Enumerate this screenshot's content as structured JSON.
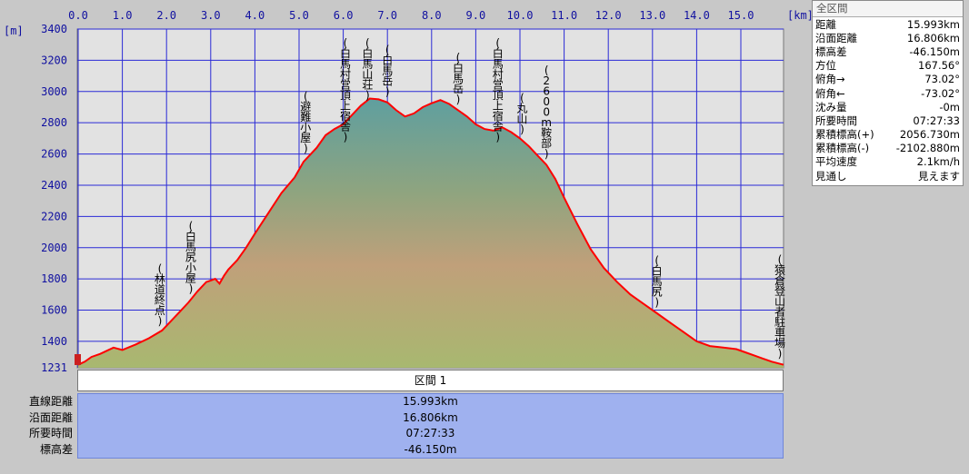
{
  "chart_data": {
    "type": "area",
    "xlabel": "[km]",
    "ylabel": "[m]",
    "xlim": [
      0,
      15.993
    ],
    "ylim": [
      1231,
      3400
    ],
    "x_ticks": [
      "0.0",
      "1.0",
      "2.0",
      "3.0",
      "4.0",
      "5.0",
      "6.0",
      "7.0",
      "8.0",
      "9.0",
      "10.0",
      "11.0",
      "12.0",
      "13.0",
      "14.0",
      "15.0"
    ],
    "y_ticks": [
      "3400",
      "3200",
      "3000",
      "2800",
      "2600",
      "2400",
      "2200",
      "2000",
      "1800",
      "1600",
      "1400",
      "1231"
    ],
    "grid": true,
    "series": [
      {
        "x": [
          0.0,
          0.15,
          0.3,
          0.5,
          0.8,
          1.0,
          1.3,
          1.6,
          1.9,
          2.1,
          2.3,
          2.5,
          2.7,
          2.9,
          3.0,
          3.1,
          3.2,
          3.3,
          3.4,
          3.6,
          3.8,
          4.0,
          4.3,
          4.6,
          4.9,
          5.1,
          5.4,
          5.6,
          5.8,
          6.0,
          6.2,
          6.4,
          6.6,
          6.8,
          7.0,
          7.2,
          7.4,
          7.6,
          7.8,
          8.0,
          8.2,
          8.4,
          8.6,
          8.8,
          9.0,
          9.2,
          9.4,
          9.6,
          9.8,
          10.0,
          10.2,
          10.4,
          10.6,
          10.8,
          11.0,
          11.3,
          11.6,
          11.9,
          12.2,
          12.5,
          12.8,
          13.1,
          13.4,
          13.7,
          14.0,
          14.3,
          14.6,
          14.9,
          15.1,
          15.3,
          15.5,
          15.7,
          15.993
        ],
        "y": [
          1250,
          1270,
          1300,
          1320,
          1360,
          1345,
          1380,
          1420,
          1470,
          1530,
          1590,
          1650,
          1720,
          1780,
          1790,
          1800,
          1770,
          1820,
          1860,
          1920,
          2000,
          2090,
          2220,
          2350,
          2450,
          2550,
          2640,
          2720,
          2760,
          2790,
          2850,
          2910,
          2955,
          2950,
          2930,
          2880,
          2840,
          2860,
          2900,
          2925,
          2945,
          2920,
          2880,
          2840,
          2790,
          2760,
          2750,
          2770,
          2740,
          2700,
          2650,
          2590,
          2530,
          2440,
          2320,
          2150,
          1990,
          1870,
          1780,
          1700,
          1640,
          1580,
          1520,
          1460,
          1400,
          1370,
          1360,
          1350,
          1330,
          1310,
          1290,
          1270,
          1250
        ]
      }
    ],
    "annotations": [
      {
        "x": 1.85,
        "text": "(林道終点)"
      },
      {
        "x": 2.55,
        "text": "(白馬尻小屋)"
      },
      {
        "x": 5.15,
        "text": "(避難小屋)"
      },
      {
        "x": 6.05,
        "text": "(白馬村営頂上宿舎)"
      },
      {
        "x": 6.55,
        "text": "(白馬山荘)"
      },
      {
        "x": 7.0,
        "text": "(白馬岳)"
      },
      {
        "x": 8.6,
        "text": "(白馬岳)"
      },
      {
        "x": 9.5,
        "text": "(白馬村営頂上宿舎)"
      },
      {
        "x": 10.05,
        "text": "(丸山)"
      },
      {
        "x": 10.6,
        "text": "(2600m鞍部)"
      },
      {
        "x": 13.1,
        "text": "(白馬尻)"
      },
      {
        "x": 15.993,
        "text": "(猿倉登山者駐車場)"
      }
    ]
  },
  "stats_panel": {
    "title": "全区間",
    "rows": [
      {
        "label": "距離",
        "value": "15.993km"
      },
      {
        "label": "沿面距離",
        "value": "16.806km"
      },
      {
        "label": "標高差",
        "value": "-46.150m"
      },
      {
        "label": "方位",
        "value": "167.56°"
      },
      {
        "label": "俯角→",
        "value": "73.02°"
      },
      {
        "label": "俯角←",
        "value": "-73.02°"
      },
      {
        "label": "沈み量",
        "value": "-0m"
      },
      {
        "label": "所要時間",
        "value": "07:27:33"
      },
      {
        "label": "累積標高(+)",
        "value": "2056.730m"
      },
      {
        "label": "累積標高(-)",
        "value": "-2102.880m"
      },
      {
        "label": "平均速度",
        "value": "2.1km/h"
      },
      {
        "label": "見通し",
        "value": "見えます"
      }
    ]
  },
  "section_table": {
    "header": "区間 1",
    "row_labels": [
      "直線距離",
      "沿面距離",
      "所要時間",
      "標高差"
    ],
    "values": [
      "15.993km",
      "16.806km",
      "07:27:33",
      "-46.150m"
    ]
  },
  "colors": {
    "profile_line": "#ff0000",
    "grid": "#2b2bd6",
    "plot_bg": "#e2e2e2",
    "table_bg": "#9fb1ef"
  }
}
